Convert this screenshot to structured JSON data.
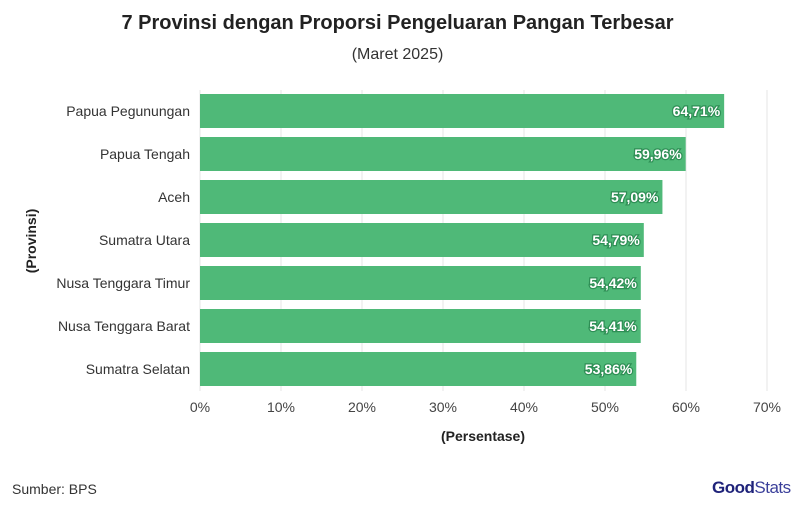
{
  "chart_data": {
    "type": "bar",
    "orientation": "horizontal",
    "title": "7 Provinsi dengan Proporsi Pengeluaran Pangan Terbesar",
    "subtitle": "(Maret 2025)",
    "xlabel": "(Persentase)",
    "ylabel": "(Provinsi)",
    "categories": [
      "Papua Pegunungan",
      "Papua Tengah",
      "Aceh",
      "Sumatra Utara",
      "Nusa Tenggara Timur",
      "Nusa Tenggara Barat",
      "Sumatra Selatan"
    ],
    "values": [
      64.71,
      59.96,
      57.09,
      54.79,
      54.42,
      54.41,
      53.86
    ],
    "labels": [
      "64,71%",
      "59,96%",
      "57,09%",
      "54,79%",
      "54,42%",
      "54,41%",
      "53,86%"
    ],
    "xlim": [
      0,
      70
    ],
    "xticks": [
      "0%",
      "10%",
      "20%",
      "30%",
      "40%",
      "50%",
      "60%",
      "70%"
    ],
    "grid": true,
    "bar_color": "#4fb978"
  },
  "source": "Sumber: BPS",
  "logo": {
    "bold": "Good",
    "light": "Stats"
  }
}
